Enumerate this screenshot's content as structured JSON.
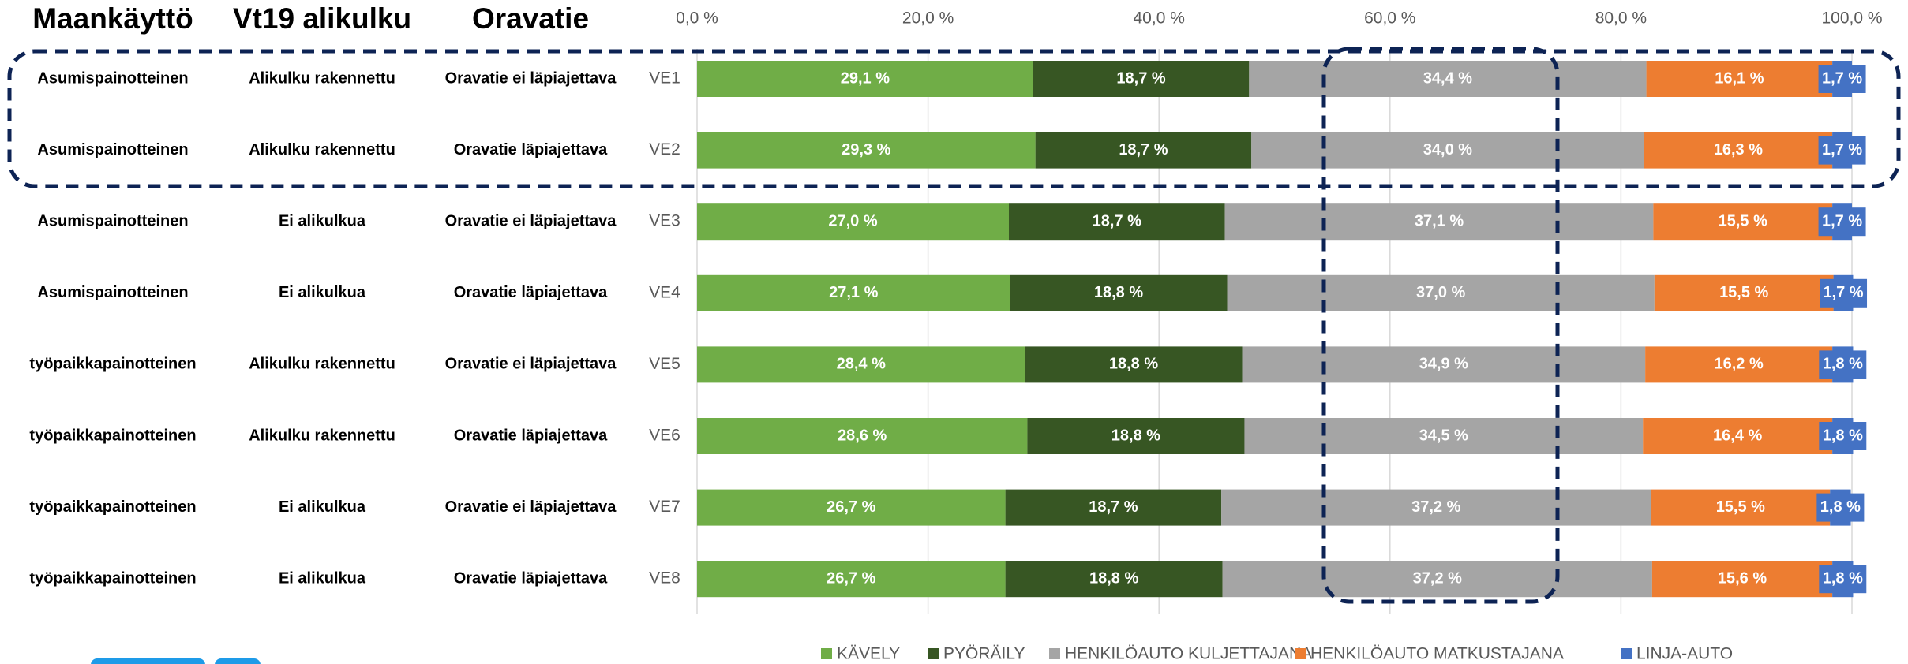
{
  "chart_data": {
    "type": "stacked_barh",
    "table_headers": [
      "Maankäyttö",
      "Vt19 alikulku",
      "Oravatie"
    ],
    "table_rows": [
      [
        "Asumispainotteinen",
        "Alikulku rakennettu",
        "Oravatie ei läpiajettava"
      ],
      [
        "Asumispainotteinen",
        "Alikulku rakennettu",
        "Oravatie läpiajettava"
      ],
      [
        "Asumispainotteinen",
        "Ei alikulkua",
        "Oravatie ei läpiajettava"
      ],
      [
        "Asumispainotteinen",
        "Ei alikulkua",
        "Oravatie läpiajettava"
      ],
      [
        "työpaikkapainotteinen",
        "Alikulku rakennettu",
        "Oravatie ei läpiajettava"
      ],
      [
        "työpaikkapainotteinen",
        "Alikulku rakennettu",
        "Oravatie läpiajettava"
      ],
      [
        "työpaikkapainotteinen",
        "Ei alikulkua",
        "Oravatie ei läpiajettava"
      ],
      [
        "työpaikkapainotteinen",
        "Ei alikulkua",
        "Oravatie läpiajettava"
      ]
    ],
    "categories": [
      "VE1",
      "VE2",
      "VE3",
      "VE4",
      "VE5",
      "VE6",
      "VE7",
      "VE8"
    ],
    "series": [
      {
        "name": "KÄVELY",
        "color": "#70ad47",
        "values": [
          29.1,
          29.3,
          27.0,
          27.1,
          28.4,
          28.6,
          26.7,
          26.7
        ],
        "value_labels": [
          "29,1 %",
          "29,3 %",
          "27,0 %",
          "27,1 %",
          "28,4 %",
          "28,6 %",
          "26,7 %",
          "26,7 %"
        ]
      },
      {
        "name": "PYÖRÄILY",
        "color": "#375623",
        "values": [
          18.7,
          18.7,
          18.7,
          18.8,
          18.8,
          18.8,
          18.7,
          18.8
        ],
        "value_labels": [
          "18,7 %",
          "18,7 %",
          "18,7 %",
          "18,8 %",
          "18,8 %",
          "18,8 %",
          "18,7 %",
          "18,8 %"
        ]
      },
      {
        "name": "HENKILÖAUTO KULJETTAJANA",
        "color": "#a5a5a5",
        "values": [
          34.4,
          34.0,
          37.1,
          37.0,
          34.9,
          34.5,
          37.2,
          37.2
        ],
        "value_labels": [
          "34,4 %",
          "34,0 %",
          "37,1 %",
          "37,0 %",
          "34,9 %",
          "34,5 %",
          "37,2 %",
          "37,2 %"
        ]
      },
      {
        "name": "HENKILÖAUTO MATKUSTAJANA",
        "color": "#ed7d31",
        "values": [
          16.1,
          16.3,
          15.5,
          15.5,
          16.2,
          16.4,
          15.5,
          15.6
        ],
        "value_labels": [
          "16,1 %",
          "16,3 %",
          "15,5 %",
          "15,5 %",
          "16,2 %",
          "16,4 %",
          "15,5 %",
          "15,6 %"
        ]
      },
      {
        "name": "LINJA-AUTO",
        "color": "#4472c4",
        "values": [
          1.7,
          1.7,
          1.7,
          1.7,
          1.8,
          1.8,
          1.8,
          1.8
        ],
        "value_labels": [
          "1,7 %",
          "1,7 %",
          "1,7 %",
          "1,7 %",
          "1,8 %",
          "1,8 %",
          "1,8 %",
          "1,8 %"
        ]
      }
    ],
    "xlim": [
      0,
      100
    ],
    "xticks": [
      {
        "value": 0,
        "label": "0,0 %"
      },
      {
        "value": 20,
        "label": "20,0 %"
      },
      {
        "value": 40,
        "label": "40,0 %"
      },
      {
        "value": 60,
        "label": "60,0 %"
      },
      {
        "value": 80,
        "label": "80,0 %"
      },
      {
        "value": 100,
        "label": "100,0 %"
      }
    ],
    "grid": true,
    "legend": "bottom"
  }
}
